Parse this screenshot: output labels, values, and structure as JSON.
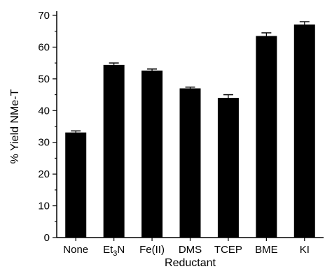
{
  "chart_data": {
    "type": "bar",
    "title": "",
    "xlabel": "Reductant",
    "ylabel": "% Yield NMe-T",
    "ylim": [
      0,
      70
    ],
    "yticks": [
      0,
      10,
      20,
      30,
      40,
      50,
      60,
      70
    ],
    "grid": false,
    "categories": [
      "None",
      "Et3N",
      "Fe(II)",
      "DMS",
      "TCEP",
      "BME",
      "KI"
    ],
    "category_display": [
      {
        "main": "None"
      },
      {
        "main": "Et",
        "sub": "3",
        "tail": "N"
      },
      {
        "main": "Fe(II)"
      },
      {
        "main": "DMS"
      },
      {
        "main": "TCEP"
      },
      {
        "main": "BME"
      },
      {
        "main": "KI"
      }
    ],
    "values": [
      33.1,
      54.4,
      52.6,
      47.0,
      44.0,
      63.5,
      67.1
    ],
    "errors": [
      0.5,
      0.6,
      0.5,
      0.4,
      1.0,
      1.0,
      0.9
    ],
    "bar_color": "#000000"
  }
}
